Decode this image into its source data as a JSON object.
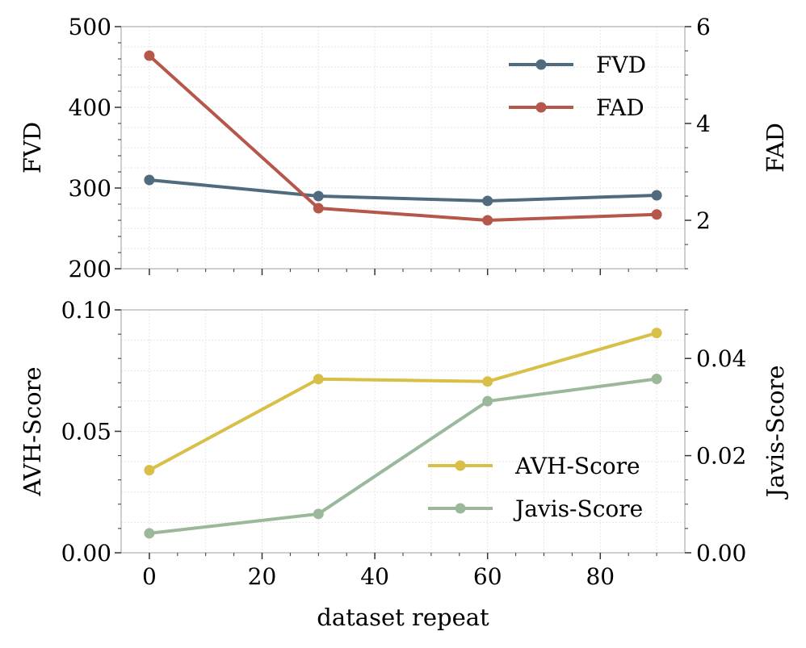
{
  "chart_data": [
    {
      "type": "line",
      "x": [
        0,
        30,
        60,
        90
      ],
      "xlim": [
        -5,
        95
      ],
      "xticks": [
        0,
        20,
        40,
        60,
        80
      ],
      "xtick_labels_visible": false,
      "xlabel": "",
      "grid": true,
      "legend_position": "top-right",
      "left_axis": {
        "label": "FVD",
        "ylim": [
          200,
          500
        ],
        "ticks": [
          200,
          300,
          400,
          500
        ],
        "tick_labels": [
          "200",
          "300",
          "400",
          "500"
        ]
      },
      "right_axis": {
        "label": "FAD",
        "ylim": [
          1,
          6
        ],
        "ticks": [
          2,
          4,
          6
        ],
        "tick_labels": [
          "2",
          "4",
          "6"
        ]
      },
      "series": [
        {
          "name": "FVD",
          "axis": "left",
          "color": "#4f6b7d",
          "values": [
            310,
            290,
            284,
            291
          ]
        },
        {
          "name": "FAD",
          "axis": "right",
          "color": "#b5574a",
          "values": [
            5.4,
            2.25,
            2.0,
            2.12
          ]
        }
      ]
    },
    {
      "type": "line",
      "x": [
        0,
        30,
        60,
        90
      ],
      "xlim": [
        -5,
        95
      ],
      "xticks": [
        0,
        20,
        40,
        60,
        80
      ],
      "xtick_labels": [
        "0",
        "20",
        "40",
        "60",
        "80"
      ],
      "xlabel": "dataset repeat",
      "grid": true,
      "legend_position": "lower-right",
      "left_axis": {
        "label": "AVH-Score",
        "ylim": [
          0.0,
          0.1
        ],
        "ticks": [
          0.0,
          0.05,
          0.1
        ],
        "tick_labels": [
          "0.00",
          "0.05",
          "0.10"
        ]
      },
      "right_axis": {
        "label": "Javis-Score",
        "ylim": [
          0.0,
          0.05
        ],
        "ticks": [
          0.0,
          0.02,
          0.04
        ],
        "tick_labels": [
          "0.00",
          "0.02",
          "0.04"
        ]
      },
      "series": [
        {
          "name": "AVH-Score",
          "axis": "left",
          "color": "#d8bf47",
          "values": [
            0.034,
            0.0715,
            0.0705,
            0.0905
          ]
        },
        {
          "name": "Javis-Score",
          "axis": "right",
          "color": "#9bb89b",
          "values": [
            0.004,
            0.008,
            0.0312,
            0.0358
          ]
        }
      ]
    }
  ]
}
